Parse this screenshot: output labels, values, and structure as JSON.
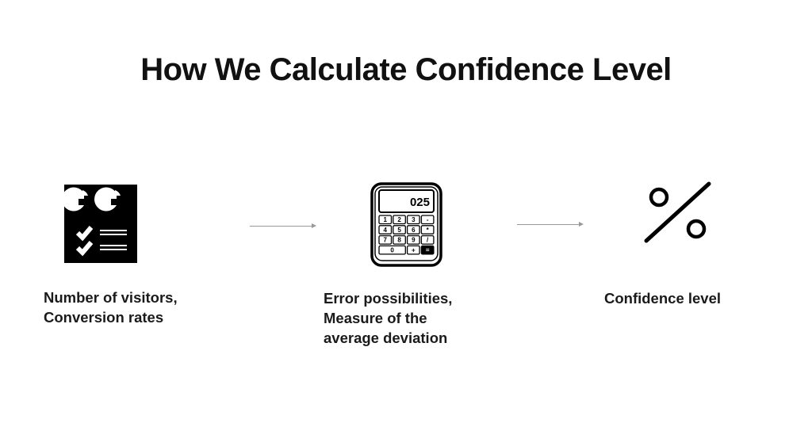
{
  "title": "How We Calculate Confidence Level",
  "steps": [
    {
      "icon": "report-chart-checklist-icon",
      "lines": [
        "Number of visitors,",
        "Conversion rates"
      ]
    },
    {
      "icon": "calculator-icon",
      "display": "025",
      "keys": [
        "1",
        "2",
        "3",
        "-",
        "4",
        "5",
        "6",
        "*",
        "7",
        "8",
        "9",
        "/",
        "0",
        "+",
        "="
      ],
      "lines": [
        "Error possibilities,",
        "Measure of the",
        "average deviation"
      ]
    },
    {
      "icon": "percent-icon",
      "lines": [
        "Confidence level"
      ]
    }
  ]
}
